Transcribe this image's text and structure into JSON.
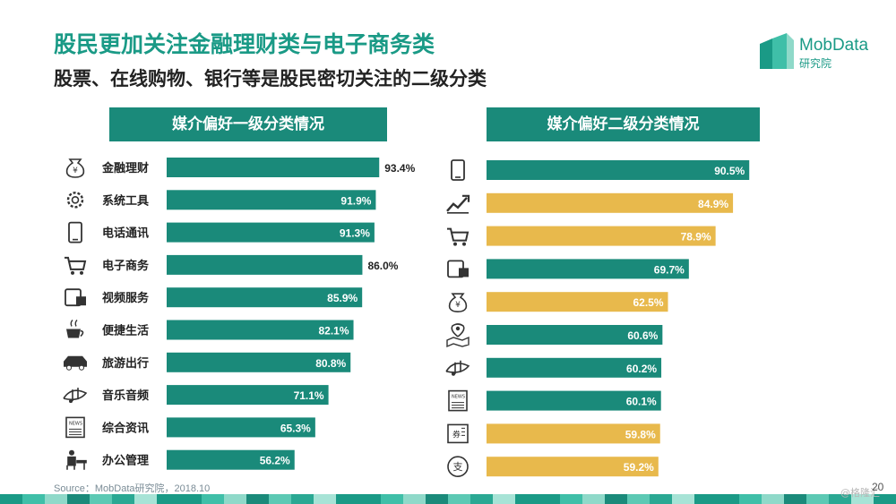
{
  "header": {
    "title": "股民更加关注金融理财类与电子商务类",
    "subtitle": "股票、在线购物、银行等是股民密切关注的二级分类"
  },
  "brand": {
    "name": "MobData",
    "sub": "研究院"
  },
  "colors": {
    "teal": "#1a8a7a",
    "gold": "#e8b94c",
    "title_teal": "#1a9a86"
  },
  "chart_data": [
    {
      "type": "bar",
      "orientation": "horizontal",
      "title": "媒介偏好一级分类情况",
      "categories": [
        "金融理财",
        "系统工具",
        "电话通讯",
        "电子商务",
        "视频服务",
        "便捷生活",
        "旅游出行",
        "音乐音频",
        "综合资讯",
        "办公管理"
      ],
      "values": [
        93.4,
        91.9,
        91.3,
        86.0,
        85.9,
        82.1,
        80.8,
        71.1,
        65.3,
        56.2
      ],
      "value_labels": [
        "93.4%",
        "91.9%",
        "91.3%",
        "86.0%",
        "85.9%",
        "82.1%",
        "80.8%",
        "71.1%",
        "65.3%",
        "56.2%"
      ],
      "label_outside": [
        true,
        false,
        false,
        true,
        false,
        false,
        false,
        false,
        false,
        false
      ],
      "colors": [
        "teal",
        "teal",
        "teal",
        "teal",
        "teal",
        "teal",
        "teal",
        "teal",
        "teal",
        "teal"
      ],
      "icons": [
        "money-bag-icon",
        "gear-icon",
        "phone-icon",
        "cart-icon",
        "video-icon",
        "coffee-icon",
        "car-icon",
        "music-icon",
        "news-icon",
        "office-icon"
      ]
    },
    {
      "type": "bar",
      "orientation": "horizontal",
      "title": "媒介偏好二级分类情况",
      "categories": [
        "即时通讯",
        "股票",
        "在线购物",
        "在线视频",
        "银行",
        "地图导航",
        "在线音乐",
        "新闻资讯",
        "团购优惠券",
        "支付"
      ],
      "values": [
        90.5,
        84.9,
        78.9,
        69.7,
        62.5,
        60.6,
        60.2,
        60.1,
        59.8,
        59.2
      ],
      "value_labels": [
        "90.5%",
        "84.9%",
        "78.9%",
        "69.7%",
        "62.5%",
        "60.6%",
        "60.2%",
        "60.1%",
        "59.8%",
        "59.2%"
      ],
      "colors": [
        "teal",
        "gold",
        "gold",
        "teal",
        "gold",
        "teal",
        "teal",
        "teal",
        "gold",
        "gold"
      ],
      "icons": [
        "phone-icon",
        "stock-icon",
        "cart-icon",
        "video-icon",
        "money-bag-icon",
        "map-pin-icon",
        "music-icon",
        "news-icon",
        "coupon-icon",
        "pay-icon"
      ]
    }
  ],
  "footer": {
    "source": "Source：MobData研究院，2018.10",
    "page": "20",
    "watermark": "@格隆汇"
  }
}
